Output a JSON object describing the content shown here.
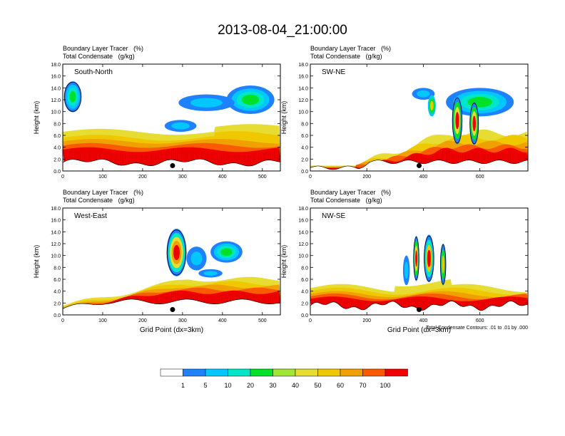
{
  "title": "2013-08-04_21:00:00",
  "colorbar": {
    "labels": [
      "1",
      "5",
      "10",
      "20",
      "30",
      "40",
      "50",
      "60",
      "70",
      "100"
    ],
    "colors": [
      "#ffffff",
      "#1e82ff",
      "#00c8ff",
      "#00e6c8",
      "#00e128",
      "#a0e632",
      "#e6dc32",
      "#f0c800",
      "#f0a000",
      "#fa5a00",
      "#f00000"
    ]
  },
  "contour_note": "Total Condensate Contours: .01 to .01 by .000",
  "chart_data": [
    {
      "type": "heatmap",
      "panel": "South-North",
      "label1": "Boundary Layer Tracer",
      "unit1": "(%)",
      "label2": "Total Condensate",
      "unit2": "(g/kg)",
      "ylabel": "Height (km)",
      "xlabel": "",
      "xlim": [
        0,
        545
      ],
      "ylim": [
        0,
        18
      ],
      "xticks": [
        0,
        100,
        200,
        300,
        400,
        500
      ],
      "yticks": [
        "0.0",
        "2.0",
        "4.0",
        "6.0",
        "8.0",
        "10.0",
        "12.0",
        "14.0",
        "16.0",
        "18.0"
      ],
      "marker_x": 275
    },
    {
      "type": "heatmap",
      "panel": "SW-NE",
      "label1": "Boundary Layer Tracer",
      "unit1": "(%)",
      "label2": "Total Condensate",
      "unit2": "(g/kg)",
      "ylabel": "Height (km)",
      "xlabel": "",
      "xlim": [
        0,
        770
      ],
      "ylim": [
        0,
        18
      ],
      "xticks": [
        0,
        200,
        400,
        600
      ],
      "yticks": [
        "0.0",
        "2.0",
        "4.0",
        "6.0",
        "8.0",
        "10.0",
        "12.0",
        "14.0",
        "16.0",
        "18.0"
      ],
      "marker_x": 385
    },
    {
      "type": "heatmap",
      "panel": "West-East",
      "label1": "Boundary Layer Tracer",
      "unit1": "(%)",
      "label2": "Total Condensate",
      "unit2": "(g/kg)",
      "ylabel": "Height (km)",
      "xlabel": "Grid Point (dx=3km)",
      "xlim": [
        0,
        545
      ],
      "ylim": [
        0,
        18
      ],
      "xticks": [
        0,
        100,
        200,
        300,
        400,
        500
      ],
      "yticks": [
        "0.0",
        "2.0",
        "4.0",
        "6.0",
        "8.0",
        "10.0",
        "12.0",
        "14.0",
        "16.0",
        "18.0"
      ],
      "marker_x": 275
    },
    {
      "type": "heatmap",
      "panel": "NW-SE",
      "label1": "Boundary Layer Tracer",
      "unit1": "(%)",
      "label2": "Total Condensate",
      "unit2": "(g/kg)",
      "ylabel": "Height (km)",
      "xlabel": "Grid Point (dx=3km)",
      "xlim": [
        0,
        770
      ],
      "ylim": [
        0,
        18
      ],
      "xticks": [
        0,
        200,
        400,
        600
      ],
      "yticks": [
        "0.0",
        "2.0",
        "4.0",
        "6.0",
        "8.0",
        "10.0",
        "12.0",
        "14.0",
        "16.0",
        "18.0"
      ],
      "marker_x": 385
    }
  ]
}
